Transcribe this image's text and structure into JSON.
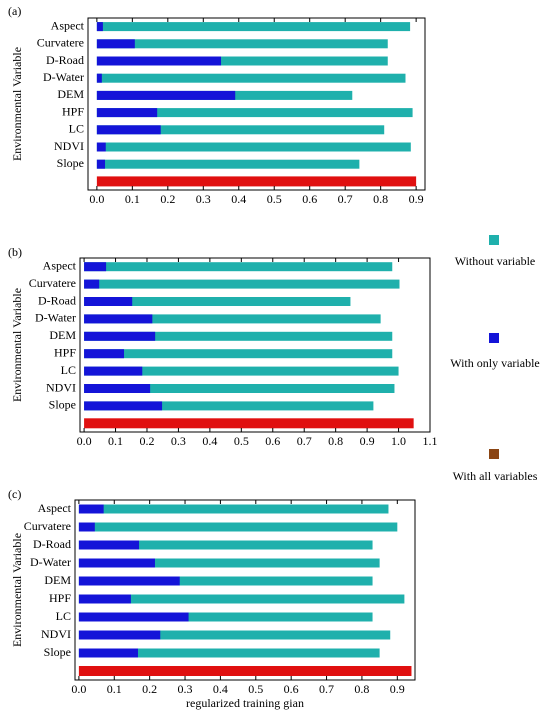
{
  "legend": [
    {
      "name": "Without variable",
      "color": "#1fb0ac"
    },
    {
      "name": "With only variable",
      "color": "#1414d8"
    },
    {
      "name": "With all variables",
      "color": "#8b4513"
    }
  ],
  "chart_data": [
    {
      "type": "bar",
      "orientation": "horizontal",
      "panel_label": "(a)",
      "ylabel": "Environmental Variable",
      "categories": [
        "Aspect",
        "Curvatere",
        "D-Road",
        "D-Water",
        "DEM",
        "HPF",
        "LC",
        "NDVI",
        "Slope",
        null
      ],
      "series": [
        {
          "color": "#1fb0ac",
          "values": [
            0.883,
            0.82,
            0.82,
            0.87,
            0.72,
            0.89,
            0.81,
            0.885,
            0.74,
            null
          ]
        },
        {
          "color": "#1414d8",
          "values": [
            0.017,
            0.107,
            0.35,
            0.014,
            0.39,
            0.17,
            0.18,
            0.025,
            0.023,
            null
          ]
        },
        {
          "color": "#e01010",
          "values": [
            null,
            null,
            null,
            null,
            null,
            null,
            null,
            null,
            null,
            0.9
          ]
        }
      ],
      "xlim": [
        -0.025,
        0.925
      ],
      "xticks": [
        {
          "value": 0,
          "label": "0.0"
        },
        0.1,
        0.2,
        0.3,
        0.4,
        0.5,
        0.6,
        0.7,
        0.8,
        0.9
      ]
    },
    {
      "type": "bar",
      "orientation": "horizontal",
      "panel_label": "(b)",
      "ylabel": "Environmental Variable",
      "categories": [
        "Aspect",
        "Curvatere",
        "D-Road",
        "D-Water",
        "DEM",
        "HPF",
        "LC",
        "NDVI",
        "Slope",
        null
      ],
      "series": [
        {
          "color": "#1fb0ac",
          "values": [
            0.98,
            1.003,
            0.847,
            0.943,
            0.98,
            0.98,
            1.0,
            0.987,
            0.92,
            null
          ]
        },
        {
          "color": "#1414d8",
          "values": [
            0.07,
            0.048,
            0.153,
            0.217,
            0.226,
            0.127,
            0.185,
            0.21,
            0.248,
            null
          ]
        },
        {
          "color": "#e01010",
          "values": [
            null,
            null,
            null,
            null,
            null,
            null,
            null,
            null,
            null,
            1.048
          ]
        }
      ],
      "xlim": [
        -0.013,
        1.1
      ],
      "xticks": [
        {
          "value": 0,
          "label": "0.0"
        },
        0.1,
        0.2,
        0.3,
        0.4,
        0.5,
        0.6,
        0.7,
        0.8,
        0.9,
        {
          "value": 1,
          "label": "1.0"
        },
        1.1
      ]
    },
    {
      "type": "bar",
      "orientation": "horizontal",
      "panel_label": "(c)",
      "ylabel": "Environmental Variable",
      "xlabel": "regularized training gian",
      "categories": [
        "Aspect",
        "Curvatere",
        "D-Road",
        "D-Water",
        "DEM",
        "HPF",
        "LC",
        "NDVI",
        "Slope",
        null
      ],
      "series": [
        {
          "color": "#1fb0ac",
          "values": [
            0.875,
            0.9,
            0.83,
            0.85,
            0.83,
            0.92,
            0.83,
            0.88,
            0.85,
            null
          ]
        },
        {
          "color": "#1414d8",
          "values": [
            0.07,
            0.045,
            0.17,
            0.215,
            0.285,
            0.147,
            0.31,
            0.23,
            0.167,
            null
          ]
        },
        {
          "color": "#e01010",
          "values": [
            null,
            null,
            null,
            null,
            null,
            null,
            null,
            null,
            null,
            0.94
          ]
        }
      ],
      "xlim": [
        -0.011,
        0.95
      ],
      "xticks": [
        {
          "value": 0,
          "label": "0.0"
        },
        0.1,
        0.2,
        0.3,
        0.4,
        0.5,
        0.6,
        0.7,
        0.8,
        0.9
      ]
    }
  ]
}
